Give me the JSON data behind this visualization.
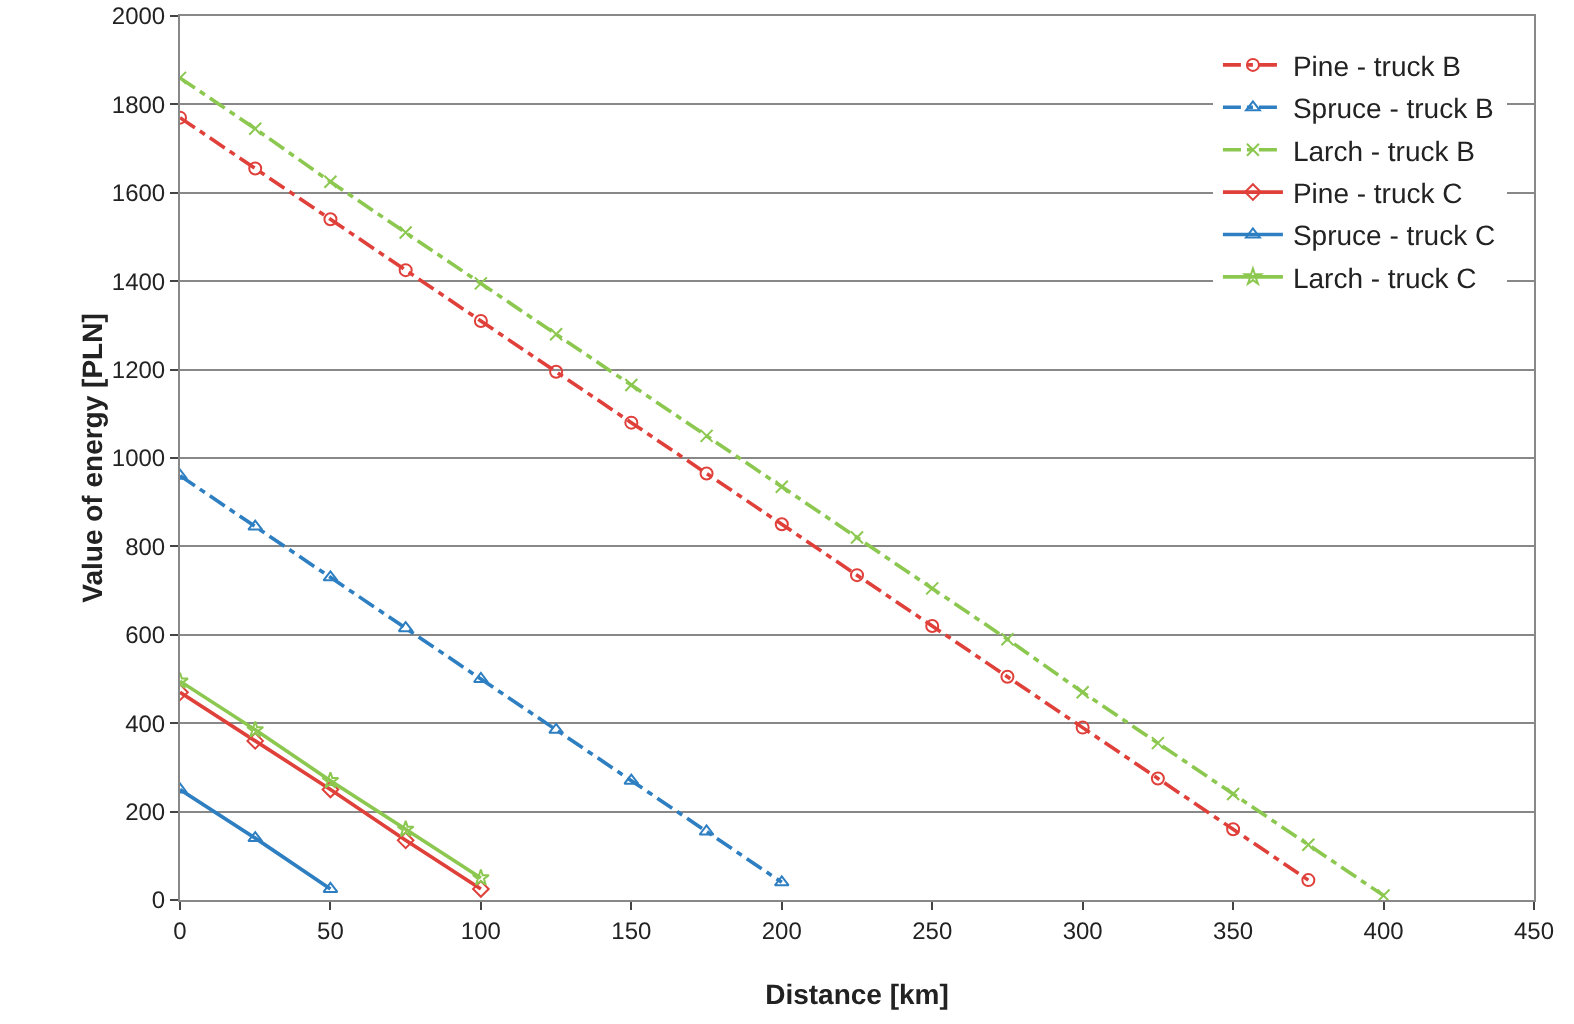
{
  "chart_data": {
    "type": "line",
    "xlabel": "Distance [km]",
    "ylabel": "Value of energy [PLN]",
    "xlim": [
      0,
      450
    ],
    "xticks": [
      0,
      50,
      100,
      150,
      200,
      250,
      300,
      350,
      400,
      450
    ],
    "ylim": [
      0,
      2000
    ],
    "yticks": [
      0,
      200,
      400,
      600,
      800,
      1000,
      1200,
      1400,
      1600,
      1800,
      2000
    ],
    "grid": "y",
    "legend": "top right",
    "series": [
      {
        "name": "Pine - truck B",
        "color": "#e0403a",
        "line_style": "dashed",
        "marker": "circle",
        "x": [
          0,
          25,
          50,
          75,
          100,
          125,
          150,
          175,
          200,
          225,
          250,
          275,
          300,
          325,
          350,
          375
        ],
        "values": [
          1770,
          1655,
          1540,
          1425,
          1310,
          1195,
          1080,
          965,
          850,
          735,
          620,
          505,
          390,
          275,
          160,
          45
        ]
      },
      {
        "name": "Spruce - truck B",
        "color": "#2e7fc2",
        "line_style": "dashed",
        "marker": "triangle",
        "x": [
          0,
          25,
          50,
          75,
          100,
          125,
          150,
          175,
          200
        ],
        "values": [
          960,
          845,
          730,
          615,
          500,
          385,
          270,
          155,
          40
        ]
      },
      {
        "name": "Larch - truck B",
        "color": "#8cc850",
        "line_style": "dashed",
        "marker": "cross",
        "x": [
          0,
          25,
          50,
          75,
          100,
          125,
          150,
          175,
          200,
          225,
          250,
          275,
          300,
          325,
          350,
          375,
          400
        ],
        "values": [
          1860,
          1745,
          1625,
          1510,
          1395,
          1280,
          1165,
          1050,
          935,
          820,
          705,
          590,
          470,
          355,
          240,
          125,
          10
        ]
      },
      {
        "name": "Pine - truck C",
        "color": "#e0403a",
        "line_style": "solid",
        "marker": "diamond",
        "x": [
          0,
          25,
          50,
          75,
          100
        ],
        "values": [
          470,
          360,
          250,
          135,
          25
        ]
      },
      {
        "name": "Spruce - truck C",
        "color": "#2e7fc2",
        "line_style": "solid",
        "marker": "triangle",
        "x": [
          0,
          25,
          50
        ],
        "values": [
          250,
          140,
          25
        ]
      },
      {
        "name": "Larch - truck C",
        "color": "#8cc850",
        "line_style": "solid",
        "marker": "star",
        "x": [
          0,
          25,
          50,
          75,
          100
        ],
        "values": [
          495,
          385,
          270,
          160,
          50
        ]
      }
    ]
  }
}
